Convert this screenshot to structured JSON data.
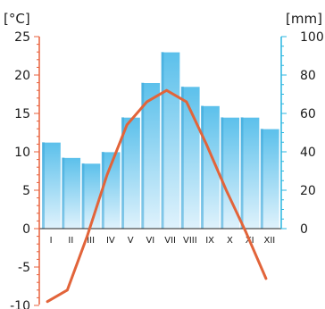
{
  "chart_data": {
    "type": "bar",
    "categories": [
      "I",
      "II",
      "III",
      "IV",
      "V",
      "VI",
      "VII",
      "VIII",
      "IX",
      "X",
      "XI",
      "XII"
    ],
    "series": [
      {
        "values": [
          45,
          37,
          34,
          40,
          58,
          76,
          92,
          74,
          64,
          58,
          58,
          52
        ]
      },
      {
        "values": [
          -9.5,
          -8,
          -1,
          7,
          13.5,
          16.5,
          18,
          16.5,
          11,
          5,
          -0.5,
          -6.5
        ]
      }
    ],
    "y_left": {
      "unit": "[°C]",
      "lim": [
        -10,
        25
      ],
      "ticks": [
        25,
        20,
        15,
        10,
        5,
        0,
        -5,
        -10
      ]
    },
    "y_right": {
      "unit": "[mm]",
      "lim": [
        0,
        100
      ],
      "ticks": [
        100,
        80,
        60,
        40,
        20,
        0
      ]
    },
    "colors": {
      "temperature_axis": "#e8603c",
      "precipitation_axis": "#29b6e0",
      "bar_top": "#5bc0eb",
      "bar_bottom": "#d7effb",
      "bar_side": "#3aa6d8",
      "line": "#e2643a"
    }
  }
}
